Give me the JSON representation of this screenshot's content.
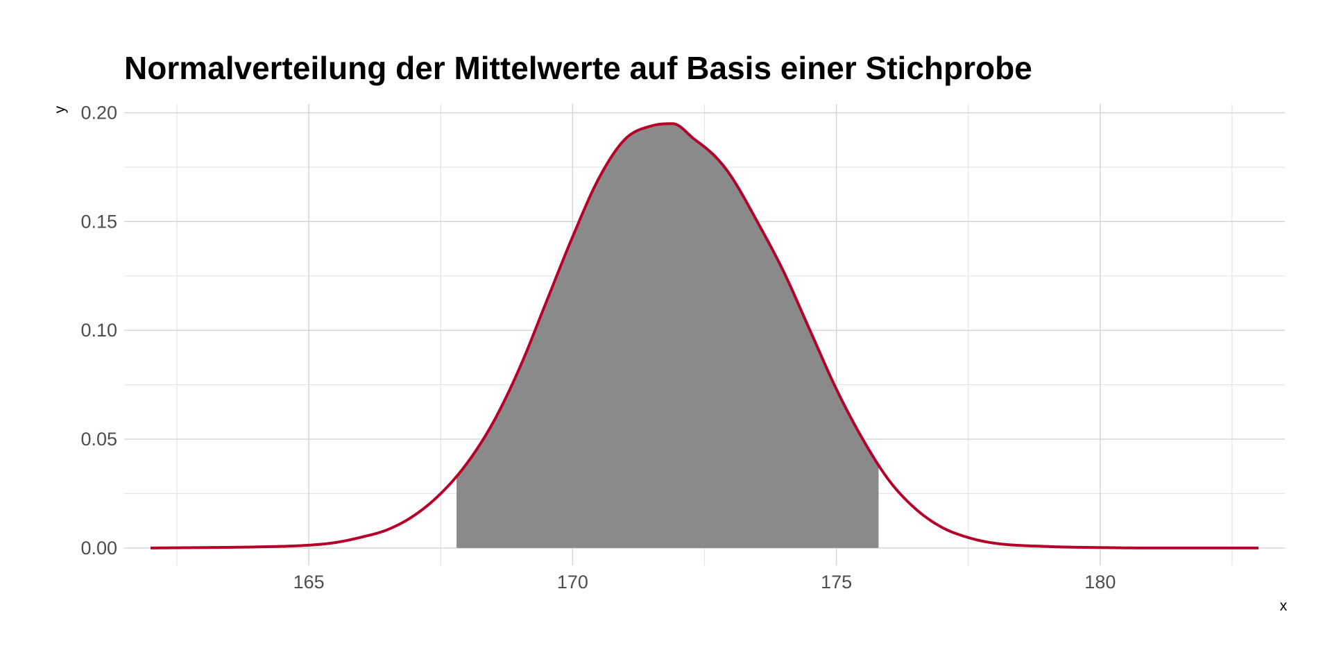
{
  "chart_data": {
    "type": "area",
    "title": "Normalverteilung der Mittelwerte auf Basis einer Stichprobe",
    "xlabel": "x",
    "ylabel": "y",
    "xlim": [
      161.5,
      183.5
    ],
    "ylim": [
      -0.008,
      0.204
    ],
    "x_ticks": [
      165,
      170,
      175,
      180
    ],
    "x_tick_labels": [
      "165",
      "170",
      "175",
      "180"
    ],
    "y_ticks": [
      0,
      0.05,
      0.1,
      0.15,
      0.2
    ],
    "y_tick_labels": [
      "0.00",
      "0.05",
      "0.10",
      "0.15",
      "0.20"
    ],
    "grid": true,
    "legend": "none",
    "curve_color": "#b5002a",
    "fill_color": "#8a8a8a",
    "shaded_range": [
      167.8,
      175.8
    ],
    "series": [
      {
        "x": [
          162,
          163,
          164,
          165,
          165.5,
          166,
          166.5,
          167,
          167.5,
          168,
          168.5,
          169,
          169.5,
          170,
          170.5,
          171,
          171.5,
          171.9,
          172.3,
          172.7,
          173,
          173.5,
          174,
          174.5,
          175,
          175.5,
          176,
          176.5,
          177,
          177.5,
          178,
          179,
          180,
          181,
          182,
          183
        ],
        "y": [
          0.0,
          0.0002,
          0.0005,
          0.0013,
          0.0025,
          0.005,
          0.0085,
          0.015,
          0.025,
          0.039,
          0.058,
          0.083,
          0.113,
          0.143,
          0.17,
          0.188,
          0.194,
          0.195,
          0.188,
          0.18,
          0.171,
          0.15,
          0.127,
          0.1,
          0.073,
          0.05,
          0.031,
          0.018,
          0.0095,
          0.0048,
          0.0022,
          0.0007,
          0.0002,
          0.0,
          0.0,
          0.0
        ]
      }
    ]
  }
}
